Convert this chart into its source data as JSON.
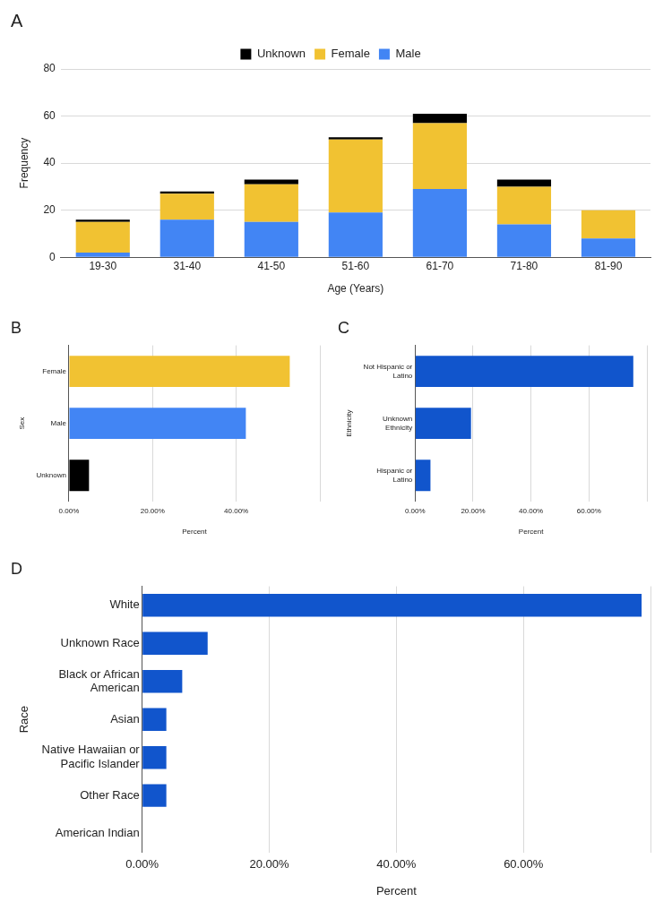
{
  "chart_data": [
    {
      "type": "bar",
      "title": "A",
      "categories": [
        "19-30",
        "31-40",
        "41-50",
        "51-60",
        "61-70",
        "71-80",
        "81-90"
      ],
      "stacked": true,
      "xlabel": "Age (Years)",
      "ylabel": "Frequency",
      "ylim": [
        0,
        80
      ],
      "yticks": [
        0,
        20,
        40,
        60,
        80
      ],
      "grid": "y",
      "legend": "top",
      "series": [
        {
          "name": "Male",
          "color": "#4285f4",
          "values": [
            2,
            16,
            15,
            19,
            29,
            14,
            8
          ]
        },
        {
          "name": "Female",
          "color": "#f1c232",
          "values": [
            13,
            11,
            16,
            31,
            28,
            16,
            12
          ]
        },
        {
          "name": "Unknown",
          "color": "#000000",
          "values": [
            1,
            1,
            2,
            1,
            4,
            3,
            0
          ]
        }
      ]
    },
    {
      "type": "bar",
      "title": "B",
      "orientation": "horizontal",
      "categories": [
        "Female",
        "Male",
        "Unknown"
      ],
      "values": [
        52.8,
        42.3,
        4.8
      ],
      "colors": [
        "#f1c232",
        "#4285f4",
        "#000000"
      ],
      "xlabel": "Percent",
      "ylabel": "Sex",
      "xlim": [
        0,
        60
      ],
      "xticks": [
        {
          "value": 0,
          "label": "0.00%"
        },
        {
          "value": 20,
          "label": "20.00%"
        },
        {
          "value": 40,
          "label": "40.00%"
        },
        {
          "value": 60,
          "label": null
        }
      ],
      "grid": "x"
    },
    {
      "type": "bar",
      "title": "C",
      "orientation": "horizontal",
      "categories": [
        "Not Hispanic or Latino",
        "Unknown Ethnicity",
        "Hispanic or Latino"
      ],
      "values": [
        75.3,
        19.3,
        5.3
      ],
      "color": "#1155cc",
      "xlabel": "Percent",
      "ylabel": "Ethnicity",
      "xlim": [
        0,
        80
      ],
      "xticks": [
        {
          "value": 0,
          "label": "0.00%"
        },
        {
          "value": 20,
          "label": "20.00%"
        },
        {
          "value": 40,
          "label": "40.00%"
        },
        {
          "value": 60,
          "label": "60.00%"
        },
        {
          "value": 80,
          "label": null
        }
      ],
      "grid": "x"
    },
    {
      "type": "bar",
      "title": "D",
      "orientation": "horizontal",
      "categories": [
        "White",
        "Unknown Race",
        "Black or African American",
        "Asian",
        "Native Hawaiian or Pacific Islander",
        "Other Race",
        "American Indian"
      ],
      "values": [
        78.6,
        10.3,
        6.3,
        3.8,
        3.8,
        3.8,
        0
      ],
      "color": "#1155cc",
      "xlabel": "Percent",
      "ylabel": "Race",
      "xlim": [
        0,
        80
      ],
      "xticks": [
        {
          "value": 0,
          "label": "0.00%"
        },
        {
          "value": 20,
          "label": "20.00%"
        },
        {
          "value": 40,
          "label": "40.00%"
        },
        {
          "value": 60,
          "label": "60.00%"
        },
        {
          "value": 80,
          "label": null
        }
      ],
      "grid": "x"
    }
  ]
}
